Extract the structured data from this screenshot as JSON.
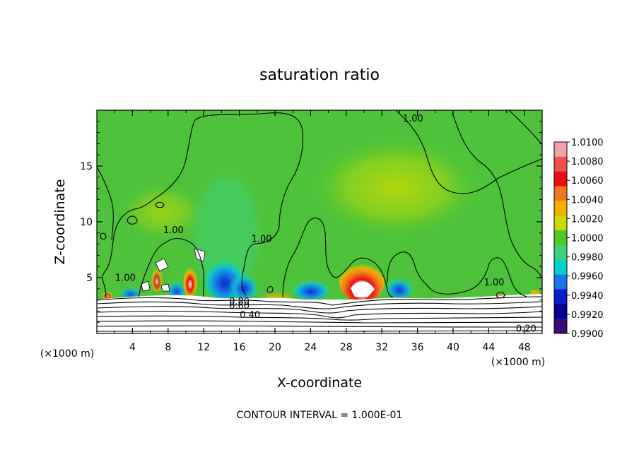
{
  "chart_data": {
    "type": "heatmap",
    "title": "saturation ratio",
    "xlabel": "X-coordinate",
    "ylabel": "Z-coordinate",
    "x_unit": "(×1000 m)",
    "y_unit": "(×1000 m)",
    "xlim": [
      0,
      50
    ],
    "ylim": [
      0,
      20
    ],
    "x_ticks": [
      4,
      8,
      12,
      16,
      20,
      24,
      28,
      32,
      36,
      40,
      44,
      48
    ],
    "y_ticks": [
      5,
      10,
      15
    ],
    "contour_interval_label": "CONTOUR INTERVAL = 1.000E-01",
    "contour_labels": [
      {
        "text": "1.00",
        "x": 35.5,
        "y": 19.0
      },
      {
        "text": "1.00",
        "x": 18.5,
        "y": 8.2
      },
      {
        "text": "1.00",
        "x": 8.6,
        "y": 9.0
      },
      {
        "text": "1.00",
        "x": 3.2,
        "y": 4.7
      },
      {
        "text": "1.00",
        "x": 44.6,
        "y": 4.3
      },
      {
        "text": "0.80",
        "x": 16.0,
        "y": 2.6
      },
      {
        "text": "0.60",
        "x": 16.0,
        "y": 2.2
      },
      {
        "text": "0.40",
        "x": 17.2,
        "y": 1.4
      },
      {
        "text": "0.20",
        "x": 48.2,
        "y": 0.15
      }
    ],
    "colorbar": {
      "min": 0.99,
      "max": 1.01,
      "step": 0.002,
      "labels": [
        "1.0100",
        "1.0080",
        "1.0060",
        "1.0040",
        "1.0020",
        "1.0000",
        "0.9980",
        "0.9960",
        "0.9940",
        "0.9920",
        "0.9900"
      ],
      "colors": [
        "#f2a3a8",
        "#f05050",
        "#e81010",
        "#f07820",
        "#f0b000",
        "#c8dc00",
        "#50c828",
        "#3cd278",
        "#00d2d2",
        "#1a78e6",
        "#0a1ec8",
        "#000096",
        "#3c0a78"
      ]
    },
    "background_color": "#4fc23b"
  }
}
